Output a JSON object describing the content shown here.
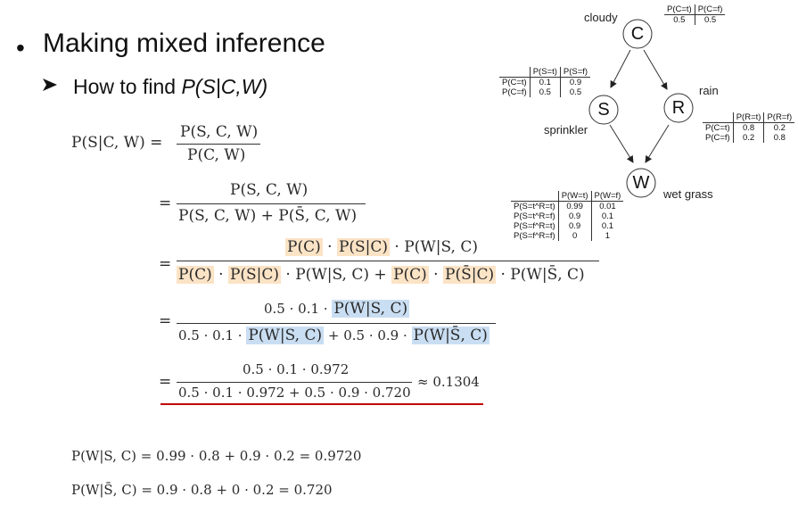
{
  "slide": {
    "bullet": "Making mixed inference",
    "sub_prefix": "How to find ",
    "sub_query": "P(S|C,W)"
  },
  "derivation": {
    "lhs": "P(S|C, W) =",
    "step1_num": "P(S, C, W)",
    "step1_den": "P(C, W)",
    "step2_num": "P(S, C, W)",
    "step2_den": "P(S, C, W) + P(S̄, C, W)",
    "eq": "=",
    "step3_num": [
      "P(C)",
      " · ",
      "P(S|C)",
      " · P(W|S, C)"
    ],
    "step3_den": [
      "P(C)",
      " · ",
      "P(S|C)",
      " · P(W|S, C) + ",
      "P(C)",
      " · ",
      "P(S̄|C)",
      " · P(W|S̄, C)"
    ],
    "step4_num_prefix": "0.5 · 0.1 · ",
    "step4_num_hl": "P(W|S, C)",
    "step4_den_a": "0.5 · 0.1 · ",
    "step4_den_hl1": "P(W|S, C)",
    "step4_den_b": " + 0.5 · 0.9 · ",
    "step4_den_hl2": "P(W|S̄, C)",
    "step5_num": "0.5 · 0.1 · 0.972",
    "step5_den": "0.5 · 0.1 · 0.972 + 0.5 · 0.9 · 0.720",
    "result": "≈ 0.1304"
  },
  "footnotes": {
    "line1": "P(W|S, C) = 0.99 · 0.8 + 0.9 · 0.2 = 0.9720",
    "line2": "P(W|S̄, C) = 0.9 · 0.8 + 0 · 0.2 = 0.720"
  },
  "network": {
    "nodes": {
      "C": {
        "letter": "C",
        "name": "cloudy"
      },
      "S": {
        "letter": "S",
        "name": "sprinkler"
      },
      "R": {
        "letter": "R",
        "name": "rain"
      },
      "W": {
        "letter": "W",
        "name": "wet grass"
      }
    },
    "cpt_c": {
      "headers": [
        "P(C=t)",
        "P(C=f)"
      ],
      "values": [
        "0.5",
        "0.5"
      ]
    },
    "cpt_s": {
      "headers": [
        "",
        "P(S=t)",
        "P(S=f)"
      ],
      "rows": [
        [
          "P(C=t)",
          "0.1",
          "0.9"
        ],
        [
          "P(C=f)",
          "0.5",
          "0.5"
        ]
      ]
    },
    "cpt_r": {
      "headers": [
        "",
        "P(R=t)",
        "P(R=f)"
      ],
      "rows": [
        [
          "P(C=t)",
          "0.8",
          "0.2"
        ],
        [
          "P(C=f)",
          "0.2",
          "0.8"
        ]
      ]
    },
    "cpt_w": {
      "headers": [
        "",
        "P(W=t)",
        "P(W=f)"
      ],
      "rows": [
        [
          "P(S=t^R=t)",
          "0.99",
          "0.01"
        ],
        [
          "P(S=t^R=f)",
          "0.9",
          "0.1"
        ],
        [
          "P(S=f^R=t)",
          "0.9",
          "0.1"
        ],
        [
          "P(S=f^R=f)",
          "0",
          "1"
        ]
      ]
    }
  }
}
